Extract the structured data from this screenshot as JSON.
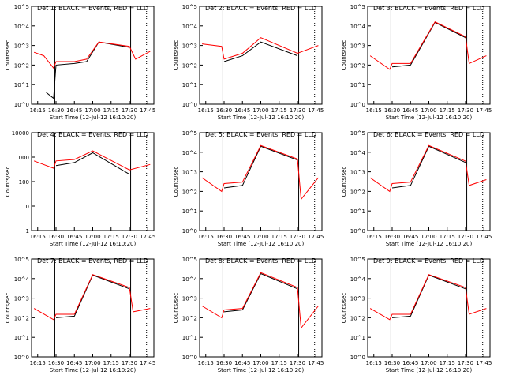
{
  "x_ticks": [
    "16:15",
    "16:30",
    "16:45",
    "17:00",
    "17:15",
    "17:30",
    "17:45"
  ],
  "xlabel": "Start Time (12-Jul-12 16:10:20)",
  "ylabel": "Counts/sec",
  "colors": {
    "events": "#000000",
    "lld": "#ff0000"
  },
  "chart_data": [
    {
      "type": "line",
      "title": "Det 1: BLACK = Events, RED = LLD",
      "xlabel": "Start Time (12-Jul-12 16:10:20)",
      "ylabel": "Counts/sec",
      "y_scale": "log",
      "ylim": [
        1,
        100000
      ],
      "x_ticks": [
        "16:15",
        "16:30",
        "16:45",
        "17:00",
        "17:15",
        "17:30",
        "17:45"
      ],
      "y_tick_labels": [
        "10^0",
        "10^1",
        "10^2",
        "10^3",
        "10^4",
        "10^5"
      ],
      "vlines_solid": [
        "16:29",
        "17:31"
      ],
      "vlines_dotted": [
        "17:44"
      ],
      "series": [
        {
          "name": "BLACK = Events",
          "x": [
            "16:12",
            "16:20",
            "16:22",
            "16:28",
            "16:30",
            "16:45",
            "16:55",
            "17:05",
            "17:30"
          ],
          "y": [
            null,
            null,
            4,
            2,
            100,
            120,
            150,
            1500,
            800
          ]
        },
        {
          "name": "RED = LLD",
          "x": [
            "16:12",
            "16:20",
            "16:28",
            "16:30",
            "16:45",
            "16:55",
            "17:05",
            "17:30",
            "17:35",
            "17:47"
          ],
          "y": [
            450,
            300,
            70,
            150,
            150,
            200,
            1500,
            900,
            200,
            500
          ]
        }
      ]
    },
    {
      "type": "line",
      "title": "Det 2: BLACK = Events, RED = LLD",
      "xlabel": "Start Time (12-Jul-12 16:10:20)",
      "ylabel": "Counts/sec",
      "y_scale": "log",
      "ylim": [
        1,
        100000
      ],
      "x_ticks": [
        "16:15",
        "16:30",
        "16:45",
        "17:00",
        "17:15",
        "17:30",
        "17:45"
      ],
      "y_tick_labels": [
        "10^0",
        "10^1",
        "10^2",
        "10^3",
        "10^4",
        "10^5"
      ],
      "vlines_solid": [
        "16:29",
        "17:31"
      ],
      "vlines_dotted": [
        "17:44"
      ],
      "series": [
        {
          "name": "BLACK = Events",
          "x": [
            "16:30",
            "16:45",
            "17:00",
            "17:30"
          ],
          "y": [
            150,
            300,
            1500,
            300
          ]
        },
        {
          "name": "RED = LLD",
          "x": [
            "16:12",
            "16:28",
            "16:30",
            "16:45",
            "17:00",
            "17:30",
            "17:47"
          ],
          "y": [
            1200,
            900,
            200,
            400,
            2500,
            400,
            1000
          ]
        }
      ]
    },
    {
      "type": "line",
      "title": "Det 3: BLACK = Events, RED = LLD",
      "xlabel": "Start Time (12-Jul-12 16:10:20)",
      "ylabel": "Counts/sec",
      "y_scale": "log",
      "ylim": [
        1,
        100000
      ],
      "x_ticks": [
        "16:15",
        "16:30",
        "16:45",
        "17:00",
        "17:15",
        "17:30",
        "17:45"
      ],
      "y_tick_labels": [
        "10^0",
        "10^1",
        "10^2",
        "10^3",
        "10^4",
        "10^5"
      ],
      "vlines_solid": [
        "16:29",
        "17:31"
      ],
      "vlines_dotted": [
        "17:44"
      ],
      "series": [
        {
          "name": "BLACK = Events",
          "x": [
            "16:30",
            "16:45",
            "17:05",
            "17:30"
          ],
          "y": [
            80,
            100,
            15000,
            2500
          ]
        },
        {
          "name": "RED = LLD",
          "x": [
            "16:12",
            "16:28",
            "16:30",
            "16:45",
            "17:05",
            "17:30",
            "17:33",
            "17:47"
          ],
          "y": [
            300,
            60,
            120,
            120,
            16000,
            2800,
            120,
            300
          ]
        }
      ]
    },
    {
      "type": "line",
      "title": "Det 4: BLACK = Events, RED = LLD",
      "xlabel": "Start Time (12-Jul-12 16:10:20)",
      "ylabel": "Counts/sec",
      "y_scale": "log",
      "ylim": [
        1,
        10000
      ],
      "x_ticks": [
        "16:15",
        "16:30",
        "16:45",
        "17:00",
        "17:15",
        "17:30",
        "17:45"
      ],
      "y_tick_labels": [
        "1",
        "10",
        "100",
        "1000",
        "10000"
      ],
      "vlines_solid": [
        "16:29",
        "17:31"
      ],
      "vlines_dotted": [
        "17:44"
      ],
      "series": [
        {
          "name": "BLACK = Events",
          "x": [
            "16:30",
            "16:45",
            "17:00",
            "17:30"
          ],
          "y": [
            450,
            600,
            1500,
            200
          ]
        },
        {
          "name": "RED = LLD",
          "x": [
            "16:12",
            "16:28",
            "16:30",
            "16:45",
            "17:00",
            "17:30",
            "17:47"
          ],
          "y": [
            700,
            350,
            700,
            800,
            1800,
            300,
            500
          ]
        }
      ]
    },
    {
      "type": "line",
      "title": "Det 5: BLACK = Events, RED = LLD",
      "xlabel": "Start Time (12-Jul-12 16:10:20)",
      "ylabel": "Counts/sec",
      "y_scale": "log",
      "ylim": [
        1,
        100000
      ],
      "x_ticks": [
        "16:15",
        "16:30",
        "16:45",
        "17:00",
        "17:15",
        "17:30",
        "17:45"
      ],
      "y_tick_labels": [
        "10^0",
        "10^1",
        "10^2",
        "10^3",
        "10^4",
        "10^5"
      ],
      "vlines_solid": [
        "16:29",
        "17:31"
      ],
      "vlines_dotted": [
        "17:44"
      ],
      "series": [
        {
          "name": "BLACK = Events",
          "x": [
            "16:30",
            "16:45",
            "17:00",
            "17:30"
          ],
          "y": [
            150,
            200,
            20000,
            4000
          ]
        },
        {
          "name": "RED = LLD",
          "x": [
            "16:12",
            "16:28",
            "16:30",
            "16:45",
            "17:00",
            "17:30",
            "17:33",
            "17:47"
          ],
          "y": [
            500,
            100,
            250,
            300,
            22000,
            4500,
            40,
            500
          ]
        }
      ]
    },
    {
      "type": "line",
      "title": "Det 6: BLACK = Events, RED = LLD",
      "xlabel": "Start Time (12-Jul-12 16:10:20)",
      "ylabel": "Counts/sec",
      "y_scale": "log",
      "ylim": [
        1,
        100000
      ],
      "x_ticks": [
        "16:15",
        "16:30",
        "16:45",
        "17:00",
        "17:15",
        "17:30",
        "17:45"
      ],
      "y_tick_labels": [
        "10^0",
        "10^1",
        "10^2",
        "10^3",
        "10^4",
        "10^5"
      ],
      "vlines_solid": [
        "16:29",
        "17:31"
      ],
      "vlines_dotted": [
        "17:44"
      ],
      "series": [
        {
          "name": "BLACK = Events",
          "x": [
            "16:30",
            "16:45",
            "17:00",
            "17:30"
          ],
          "y": [
            150,
            200,
            20000,
            3000
          ]
        },
        {
          "name": "RED = LLD",
          "x": [
            "16:12",
            "16:28",
            "16:30",
            "16:45",
            "17:00",
            "17:30",
            "17:33",
            "17:47"
          ],
          "y": [
            500,
            100,
            250,
            300,
            22000,
            3500,
            200,
            400
          ]
        }
      ]
    },
    {
      "type": "line",
      "title": "Det 7: BLACK = Events, RED = LLD",
      "xlabel": "Start Time (12-Jul-12 16:10:20)",
      "ylabel": "Counts/sec",
      "y_scale": "log",
      "ylim": [
        1,
        100000
      ],
      "x_ticks": [
        "16:15",
        "16:30",
        "16:45",
        "17:00",
        "17:15",
        "17:30",
        "17:45"
      ],
      "y_tick_labels": [
        "10^0",
        "10^1",
        "10^2",
        "10^3",
        "10^4",
        "10^5"
      ],
      "vlines_solid": [
        "16:29",
        "17:31"
      ],
      "vlines_dotted": [
        "17:44"
      ],
      "series": [
        {
          "name": "BLACK = Events",
          "x": [
            "16:30",
            "16:45",
            "17:00",
            "17:30"
          ],
          "y": [
            100,
            120,
            15000,
            3000
          ]
        },
        {
          "name": "RED = LLD",
          "x": [
            "16:12",
            "16:28",
            "16:30",
            "16:45",
            "17:00",
            "17:30",
            "17:33",
            "17:47"
          ],
          "y": [
            300,
            80,
            150,
            150,
            16000,
            3500,
            200,
            300
          ]
        }
      ]
    },
    {
      "type": "line",
      "title": "Det 8: BLACK = Events, RED = LLD",
      "xlabel": "Start Time (12-Jul-12 16:10:20)",
      "ylabel": "Counts/sec",
      "y_scale": "log",
      "ylim": [
        1,
        100000
      ],
      "x_ticks": [
        "16:15",
        "16:30",
        "16:45",
        "17:00",
        "17:15",
        "17:30",
        "17:45"
      ],
      "y_tick_labels": [
        "10^0",
        "10^1",
        "10^2",
        "10^3",
        "10^4",
        "10^5"
      ],
      "vlines_solid": [
        "16:29",
        "17:31"
      ],
      "vlines_dotted": [
        "17:44"
      ],
      "series": [
        {
          "name": "BLACK = Events",
          "x": [
            "16:30",
            "16:45",
            "17:00",
            "17:30"
          ],
          "y": [
            200,
            250,
            18000,
            3000
          ]
        },
        {
          "name": "RED = LLD",
          "x": [
            "16:12",
            "16:28",
            "16:30",
            "16:45",
            "17:00",
            "17:30",
            "17:33",
            "17:47"
          ],
          "y": [
            400,
            100,
            250,
            300,
            20000,
            3500,
            30,
            400
          ]
        }
      ]
    },
    {
      "type": "line",
      "title": "Det 9: BLACK = Events, RED = LLD",
      "xlabel": "Start Time (12-Jul-12 16:10:20)",
      "ylabel": "Counts/sec",
      "y_scale": "log",
      "ylim": [
        1,
        100000
      ],
      "x_ticks": [
        "16:15",
        "16:30",
        "16:45",
        "17:00",
        "17:15",
        "17:30",
        "17:45"
      ],
      "y_tick_labels": [
        "10^0",
        "10^1",
        "10^2",
        "10^3",
        "10^4",
        "10^5"
      ],
      "vlines_solid": [
        "16:29",
        "17:31"
      ],
      "vlines_dotted": [
        "17:44"
      ],
      "series": [
        {
          "name": "BLACK = Events",
          "x": [
            "16:30",
            "16:45",
            "17:00",
            "17:30"
          ],
          "y": [
            100,
            120,
            15000,
            3000
          ]
        },
        {
          "name": "RED = LLD",
          "x": [
            "16:12",
            "16:28",
            "16:30",
            "16:45",
            "17:00",
            "17:30",
            "17:33",
            "17:47"
          ],
          "y": [
            300,
            80,
            150,
            150,
            16000,
            3500,
            150,
            300
          ]
        }
      ]
    }
  ]
}
